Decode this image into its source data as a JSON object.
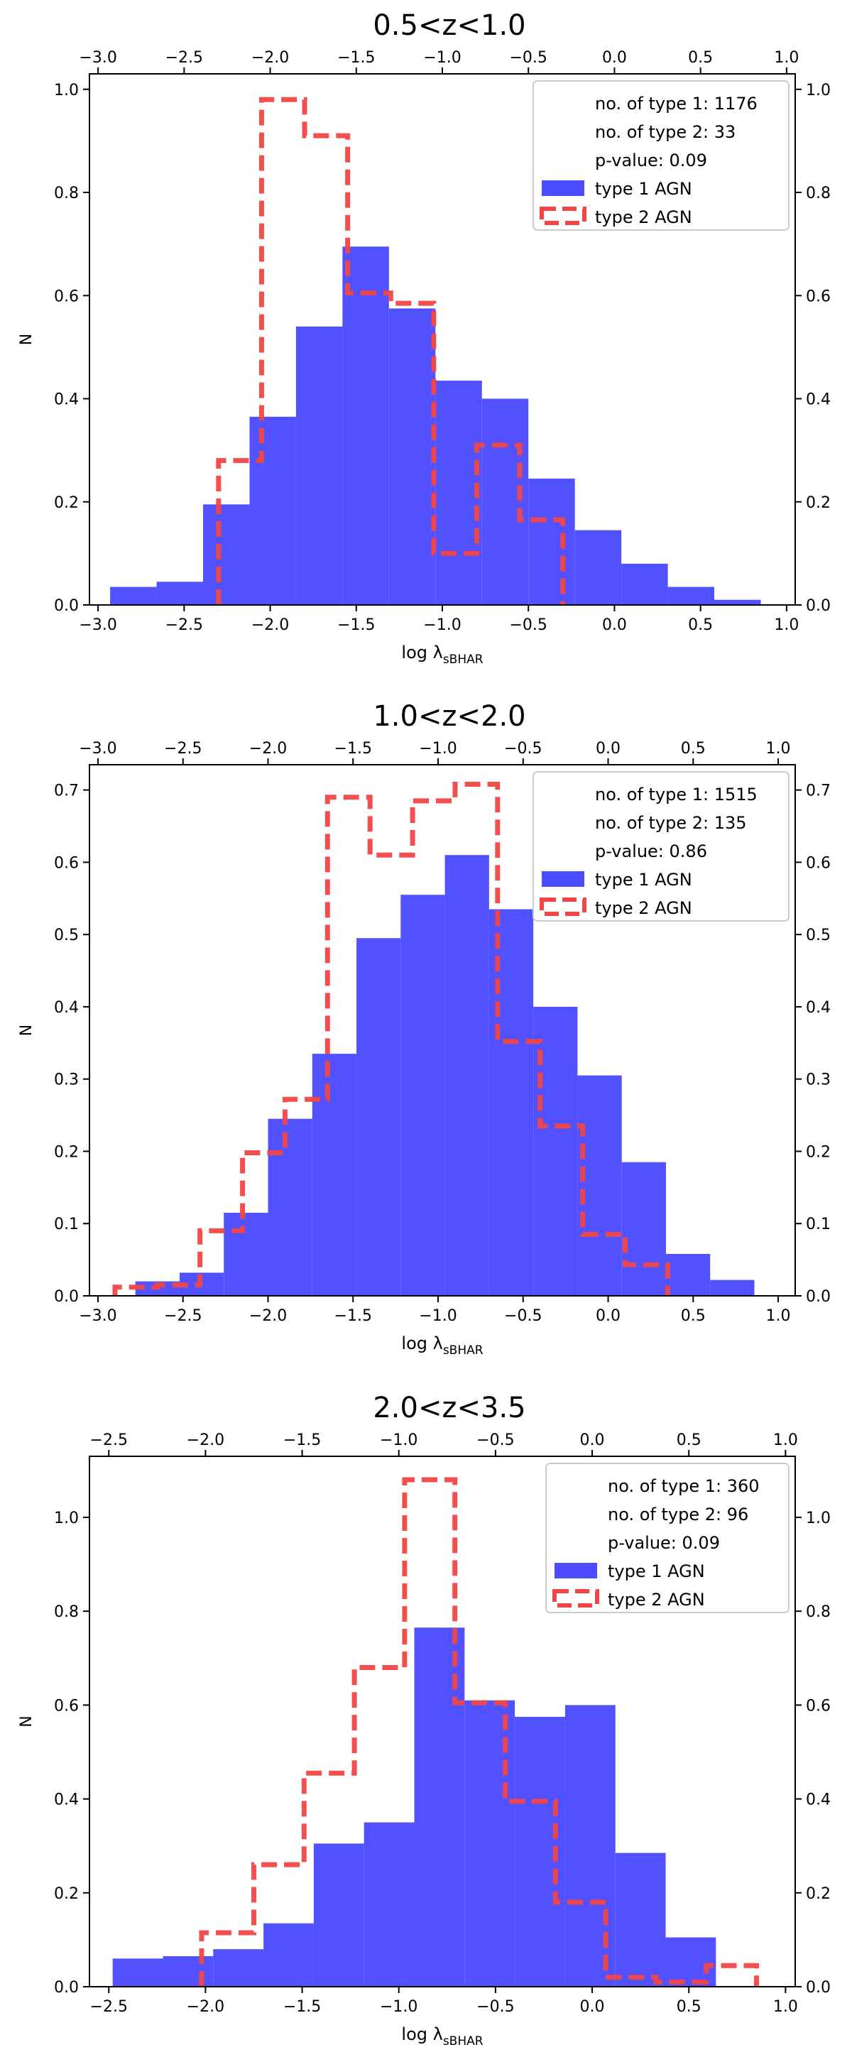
{
  "figure": {
    "xlabel_main": "log λ",
    "xlabel_sub": "sBHAR",
    "ylabel": "N"
  },
  "colors": {
    "type1": "#4b4bff",
    "type2": "#f24646",
    "axis": "#000000"
  },
  "chart_data": [
    {
      "type": "bar",
      "title": "0.5<z<1.0",
      "xlim": [
        -3.05,
        1.05
      ],
      "ylim": [
        0,
        1.03
      ],
      "xticks": [
        -3.0,
        -2.5,
        -2.0,
        -1.5,
        -1.0,
        -0.5,
        0.0,
        0.5,
        1.0
      ],
      "xtick_labels": [
        "−3.0",
        "−2.5",
        "−2.0",
        "−1.5",
        "−1.0",
        "−0.5",
        "0.0",
        "0.5",
        "1.0"
      ],
      "yticks": [
        0.0,
        0.2,
        0.4,
        0.6,
        0.8,
        1.0
      ],
      "ytick_labels": [
        "0.0",
        "0.2",
        "0.4",
        "0.6",
        "0.8",
        "1.0"
      ],
      "legend": {
        "position": "upper right",
        "lines": [
          "no. of type 1: 1176",
          "no. of type 2: 33",
          "p-value: 0.09"
        ],
        "type1_label": "type 1 AGN",
        "type2_label": "type 2 AGN"
      },
      "series": [
        {
          "name": "type 1 AGN",
          "style": "filled",
          "edges": [
            -2.93,
            -2.66,
            -2.39,
            -2.12,
            -1.85,
            -1.58,
            -1.31,
            -1.04,
            -0.77,
            -0.5,
            -0.23,
            0.04,
            0.31,
            0.58,
            0.85
          ],
          "values": [
            0.035,
            0.045,
            0.195,
            0.365,
            0.54,
            0.695,
            0.575,
            0.435,
            0.4,
            0.245,
            0.145,
            0.08,
            0.035,
            0.01
          ]
        },
        {
          "name": "type 2 AGN",
          "style": "dashed-step",
          "edges": [
            -2.3,
            -2.05,
            -1.8,
            -1.55,
            -1.3,
            -1.05,
            -0.8,
            -0.55,
            -0.3
          ],
          "values": [
            0.28,
            0.98,
            0.91,
            0.605,
            0.585,
            0.1,
            0.31,
            0.165
          ]
        }
      ]
    },
    {
      "type": "bar",
      "title": "1.0<z<2.0",
      "xlim": [
        -3.05,
        1.1
      ],
      "ylim": [
        0,
        0.735
      ],
      "xticks": [
        -3.0,
        -2.5,
        -2.0,
        -1.5,
        -1.0,
        -0.5,
        0.0,
        0.5,
        1.0
      ],
      "xtick_labels": [
        "−3.0",
        "−2.5",
        "−2.0",
        "−1.5",
        "−1.0",
        "−0.5",
        "0.0",
        "0.5",
        "1.0"
      ],
      "yticks": [
        0.0,
        0.1,
        0.2,
        0.3,
        0.4,
        0.5,
        0.6,
        0.7
      ],
      "ytick_labels": [
        "0.0",
        "0.1",
        "0.2",
        "0.3",
        "0.4",
        "0.5",
        "0.6",
        "0.7"
      ],
      "legend": {
        "position": "upper right",
        "lines": [
          "no. of type 1: 1515",
          "no. of type 2: 135",
          "p-value: 0.86"
        ],
        "type1_label": "type 1 AGN",
        "type2_label": "type 2 AGN"
      },
      "series": [
        {
          "name": "type 1 AGN",
          "style": "filled",
          "edges": [
            -2.78,
            -2.52,
            -2.26,
            -2.0,
            -1.74,
            -1.48,
            -1.22,
            -0.96,
            -0.7,
            -0.44,
            -0.18,
            0.08,
            0.34,
            0.6,
            0.86
          ],
          "values": [
            0.02,
            0.032,
            0.115,
            0.245,
            0.335,
            0.495,
            0.555,
            0.61,
            0.535,
            0.4,
            0.305,
            0.185,
            0.058,
            0.022
          ]
        },
        {
          "name": "type 2 AGN",
          "style": "dashed-step",
          "edges": [
            -2.9,
            -2.65,
            -2.4,
            -2.15,
            -1.9,
            -1.65,
            -1.4,
            -1.15,
            -0.9,
            -0.65,
            -0.4,
            -0.15,
            0.1,
            0.35
          ],
          "values": [
            0.012,
            0.015,
            0.09,
            0.198,
            0.272,
            0.69,
            0.61,
            0.685,
            0.708,
            0.352,
            0.235,
            0.085,
            0.043
          ]
        }
      ]
    },
    {
      "type": "bar",
      "title": "2.0<z<3.5",
      "xlim": [
        -2.6,
        1.05
      ],
      "ylim": [
        0,
        1.13
      ],
      "xticks": [
        -2.5,
        -2.0,
        -1.5,
        -1.0,
        -0.5,
        0.0,
        0.5,
        1.0
      ],
      "xtick_labels": [
        "−2.5",
        "−2.0",
        "−1.5",
        "−1.0",
        "−0.5",
        "0.0",
        "0.5",
        "1.0"
      ],
      "yticks": [
        0.0,
        0.2,
        0.4,
        0.6,
        0.8,
        1.0
      ],
      "ytick_labels": [
        "0.0",
        "0.2",
        "0.4",
        "0.6",
        "0.8",
        "1.0"
      ],
      "legend": {
        "position": "upper right",
        "lines": [
          "no. of type 1: 360",
          "no. of type 2: 96",
          "p-value: 0.09"
        ],
        "type1_label": "type 1 AGN",
        "type2_label": "type 2 AGN"
      },
      "series": [
        {
          "name": "type 1 AGN",
          "style": "filled",
          "edges": [
            -2.48,
            -2.22,
            -1.96,
            -1.7,
            -1.44,
            -1.18,
            -0.92,
            -0.66,
            -0.4,
            -0.14,
            0.12,
            0.38,
            0.64
          ],
          "values": [
            0.06,
            0.065,
            0.08,
            0.135,
            0.305,
            0.35,
            0.765,
            0.61,
            0.575,
            0.6,
            0.285,
            0.105
          ]
        },
        {
          "name": "type 2 AGN",
          "style": "dashed-step",
          "edges": [
            -2.02,
            -1.75,
            -1.49,
            -1.23,
            -0.97,
            -0.71,
            -0.45,
            -0.19,
            0.07,
            0.33,
            0.59,
            0.85
          ],
          "values": [
            0.115,
            0.26,
            0.455,
            0.68,
            1.08,
            0.605,
            0.395,
            0.18,
            0.02,
            0.01,
            0.045
          ]
        }
      ]
    }
  ]
}
